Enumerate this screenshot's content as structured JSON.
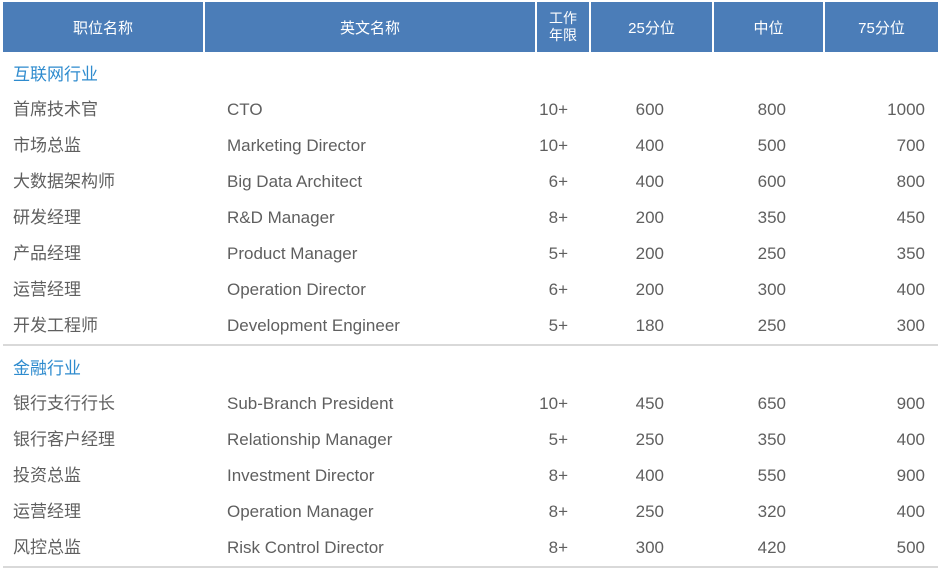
{
  "colors": {
    "header_background": "#4b7db8",
    "header_text": "#ffffff",
    "section_title_text": "#2e8bce",
    "body_text": "#5f5f5f",
    "divider_line": "#d9d9d9"
  },
  "chart_data": {
    "type": "table",
    "columns": [
      "职位名称",
      "英文名称",
      "工作年限",
      "25分位",
      "中位",
      "75分位"
    ],
    "legend_position": "none",
    "grid": false,
    "sections": [
      {
        "name": "互联网行业",
        "rows": [
          [
            "首席技术官",
            "CTO",
            "10+",
            "600",
            "800",
            "1000"
          ],
          [
            "市场总监",
            "Marketing Director",
            "10+",
            "400",
            "500",
            "700"
          ],
          [
            "大数据架构师",
            "Big Data Architect",
            "6+",
            "400",
            "600",
            "800"
          ],
          [
            "研发经理",
            "R&D Manager",
            "8+",
            "200",
            "350",
            "450"
          ],
          [
            "产品经理",
            "Product Manager",
            "5+",
            "200",
            "250",
            "350"
          ],
          [
            "运营经理",
            "Operation Director",
            "6+",
            "200",
            "300",
            "400"
          ],
          [
            "开发工程师",
            "Development Engineer",
            "5+",
            "180",
            "250",
            "300"
          ]
        ]
      },
      {
        "name": "金融行业",
        "rows": [
          [
            "银行支行行长",
            "Sub-Branch President",
            "10+",
            "450",
            "650",
            "900"
          ],
          [
            "银行客户经理",
            "Relationship Manager",
            "5+",
            "250",
            "350",
            "400"
          ],
          [
            "投资总监",
            "Investment Director",
            "8+",
            "400",
            "550",
            "900"
          ],
          [
            "运营经理",
            "Operation Manager",
            "8+",
            "250",
            "320",
            "400"
          ],
          [
            "风控总监",
            "Risk Control Director",
            "8+",
            "300",
            "420",
            "500"
          ]
        ]
      }
    ]
  }
}
